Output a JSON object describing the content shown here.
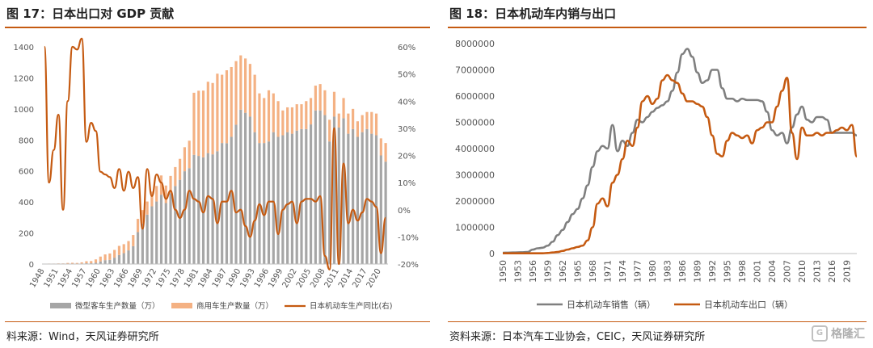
{
  "left": {
    "title": "图 17：日本出口对 GDP 贡献",
    "source": "料来源：Wind，天风证券研究所"
  },
  "right": {
    "title": "图 18：日本机动车内销与出口",
    "source": "资料来源：日本汽车工业协会，CEIC，天风证券研究所"
  },
  "watermark": {
    "icon": "G",
    "text": "格隆汇"
  },
  "colors": {
    "passenger": "#a6a6a6",
    "commercial": "#f4b183",
    "growth": "#c55a11",
    "domestic": "#7f7f7f",
    "export": "#c55a11",
    "accent": "#c55a11"
  },
  "chart_data": [
    {
      "type": "bar",
      "stacked": true,
      "years": [
        1948,
        1949,
        1950,
        1951,
        1952,
        1953,
        1954,
        1955,
        1956,
        1957,
        1958,
        1959,
        1960,
        1961,
        1962,
        1963,
        1964,
        1965,
        1966,
        1967,
        1968,
        1969,
        1970,
        1971,
        1972,
        1973,
        1974,
        1975,
        1976,
        1977,
        1978,
        1979,
        1980,
        1981,
        1982,
        1983,
        1984,
        1985,
        1986,
        1987,
        1988,
        1989,
        1990,
        1991,
        1992,
        1993,
        1994,
        1995,
        1996,
        1997,
        1998,
        1999,
        2000,
        2001,
        2002,
        2003,
        2004,
        2005,
        2006,
        2007,
        2008,
        2009,
        2010,
        2011,
        2012,
        2013,
        2014,
        2015,
        2016,
        2017,
        2018,
        2019,
        2020,
        2021
      ],
      "x_tick_labels": [
        "1948",
        "1951",
        "1954",
        "1957",
        "1960",
        "1963",
        "1966",
        "1969",
        "1972",
        "1975",
        "1978",
        "1981",
        "1984",
        "1987",
        "1990",
        "1993",
        "1996",
        "1999",
        "2002",
        "2005",
        "2008",
        "2011",
        "2014",
        "2017",
        "2020"
      ],
      "y_left": {
        "min": 0,
        "max": 1400,
        "ticks": [
          "0",
          "200",
          "400",
          "600",
          "800",
          "1000",
          "1200",
          "1400"
        ]
      },
      "y_right": {
        "min": -20,
        "max": 60,
        "ticks": [
          "-20%",
          "-10%",
          "0%",
          "10%",
          "20%",
          "30%",
          "40%",
          "50%",
          "60%"
        ]
      },
      "series": [
        {
          "name": "微型客车生产数量（万）",
          "axis": "left",
          "values": [
            0,
            0,
            0,
            0,
            0,
            1,
            1,
            2,
            3,
            5,
            5,
            8,
            17,
            25,
            27,
            41,
            58,
            70,
            88,
            115,
            206,
            261,
            318,
            372,
            403,
            447,
            393,
            457,
            503,
            543,
            598,
            618,
            704,
            697,
            688,
            715,
            707,
            727,
            780,
            779,
            820,
            898,
            995,
            975,
            950,
            850,
            780,
            780,
            790,
            850,
            820,
            830,
            850,
            840,
            860,
            870,
            870,
            900,
            990,
            990,
            960,
            790,
            950,
            880,
            940,
            840,
            870,
            820,
            850,
            870,
            840,
            830,
            700,
            660
          ]
        },
        {
          "name": "商用车生产数量（万）",
          "axis": "left",
          "values": [
            2,
            3,
            3,
            4,
            4,
            6,
            7,
            5,
            8,
            13,
            14,
            22,
            31,
            37,
            41,
            50,
            59,
            58,
            60,
            72,
            85,
            87,
            85,
            95,
            100,
            124,
            113,
            111,
            122,
            135,
            155,
            177,
            400,
            420,
            430,
            460,
            460,
            500,
            440,
            470,
            450,
            410,
            350,
            350,
            340,
            370,
            320,
            290,
            330,
            250,
            230,
            160,
            160,
            170,
            170,
            160,
            180,
            170,
            160,
            170,
            160,
            140,
            160,
            90,
            130,
            130,
            130,
            100,
            110,
            110,
            140,
            140,
            110,
            120
          ]
        },
        {
          "name": "日本机动车生产同比(右)",
          "axis": "right",
          "values": [
            60,
            10,
            22,
            35,
            0,
            40,
            60,
            59,
            63,
            25,
            32,
            29,
            14,
            13,
            12,
            8,
            15,
            7,
            14,
            8,
            12,
            -7,
            15,
            5,
            13,
            10,
            4,
            7,
            0,
            -3,
            0,
            7,
            4,
            3,
            -1,
            5,
            4,
            -5,
            3,
            3,
            7,
            -1,
            0,
            -6,
            -10,
            -4,
            2,
            -2,
            3,
            3,
            -9,
            0,
            2,
            3,
            -5,
            3,
            4,
            4,
            3,
            5,
            -17,
            -22,
            30,
            -20,
            17,
            -5,
            0,
            -4,
            -1,
            4,
            3,
            1,
            -16,
            -3
          ]
        }
      ]
    },
    {
      "type": "line",
      "years": [
        1950,
        1951,
        1952,
        1953,
        1954,
        1955,
        1956,
        1957,
        1958,
        1959,
        1960,
        1961,
        1962,
        1963,
        1964,
        1965,
        1966,
        1967,
        1968,
        1969,
        1970,
        1971,
        1972,
        1973,
        1974,
        1975,
        1976,
        1977,
        1978,
        1979,
        1980,
        1981,
        1982,
        1983,
        1984,
        1985,
        1986,
        1987,
        1988,
        1989,
        1990,
        1991,
        1992,
        1993,
        1994,
        1995,
        1996,
        1997,
        1998,
        1999,
        2000,
        2001,
        2002,
        2003,
        2004,
        2005,
        2006,
        2007,
        2008,
        2009,
        2010,
        2011,
        2012,
        2013,
        2014,
        2015,
        2016,
        2017,
        2018,
        2019,
        2020,
        2021
      ],
      "x_tick_labels": [
        "1950",
        "1953",
        "1956",
        "1959",
        "1962",
        "1965",
        "1968",
        "1971",
        "1974",
        "1977",
        "1980",
        "1983",
        "1986",
        "1989",
        "1992",
        "1995",
        "1998",
        "2001",
        "2004",
        "2007",
        "2010",
        "2013",
        "2016",
        "2019"
      ],
      "y": {
        "min": 0,
        "max": 8000000,
        "ticks": [
          "0",
          "1000000",
          "2000000",
          "3000000",
          "4000000",
          "5000000",
          "6000000",
          "7000000",
          "8000000"
        ]
      },
      "series": [
        {
          "name": "日本机动车销售（辆）",
          "values": [
            30000,
            35000,
            40000,
            45000,
            50000,
            60000,
            150000,
            200000,
            220000,
            300000,
            450000,
            700000,
            900000,
            1200000,
            1500000,
            1700000,
            2100000,
            2600000,
            3300000,
            3900000,
            4100000,
            4000000,
            4900000,
            3900000,
            4300000,
            4100000,
            4600000,
            5100000,
            5000000,
            5200000,
            5400000,
            5550000,
            5650000,
            5800000,
            6200000,
            6900000,
            7600000,
            7800000,
            7500000,
            6900000,
            6500000,
            6600000,
            7000000,
            7000000,
            6300000,
            5900000,
            5900000,
            5800000,
            5900000,
            5850000,
            5850000,
            5850000,
            5800000,
            5400000,
            4700000,
            4500000,
            4600000,
            4200000,
            4800000,
            5300000,
            5600000,
            5100000,
            5000000,
            5200000,
            5200000,
            5100000,
            4600000,
            4600000,
            4600000,
            4600000,
            4600000,
            4500000
          ]
        },
        {
          "name": "日本机动车出口（辆）",
          "values": [
            10000,
            10000,
            10000,
            10000,
            10000,
            10000,
            10000,
            10000,
            10000,
            20000,
            40000,
            60000,
            100000,
            150000,
            200000,
            250000,
            300000,
            500000,
            1000000,
            1900000,
            2100000,
            1800000,
            2700000,
            3000000,
            3600000,
            4300000,
            4100000,
            4800000,
            5800000,
            6000000,
            5700000,
            5900000,
            6600000,
            6800000,
            6600000,
            6500000,
            6100000,
            5800000,
            5800000,
            5700000,
            5600000,
            5200000,
            4500000,
            3800000,
            3700000,
            4300000,
            4600000,
            4500000,
            4400000,
            4500000,
            4200000,
            4700000,
            4800000,
            5000000,
            5000000,
            5600000,
            6200000,
            6700000,
            4600000,
            3600000,
            4800000,
            4500000,
            4500000,
            4600000,
            4500000,
            4600000,
            4600000,
            4700000,
            4800000,
            4700000,
            4900000,
            3700000
          ]
        }
      ]
    }
  ]
}
